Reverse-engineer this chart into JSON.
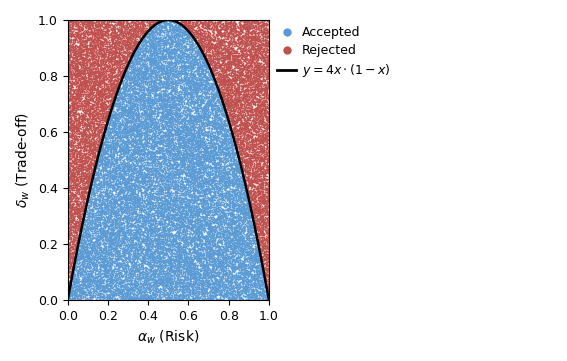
{
  "n_points": 50000,
  "seed": 42,
  "xlim": [
    0,
    1
  ],
  "ylim": [
    0,
    1
  ],
  "xlabel": "$\\alpha_w$ (Risk)",
  "ylabel": "$\\delta_w$ (Trade-off)",
  "accepted_color": "#5B9BD5",
  "rejected_color": "#C0504D",
  "curve_color": "#000000",
  "curve_linewidth": 1.8,
  "marker_size": 1.5,
  "legend_accepted": "Accepted",
  "legend_rejected": "Rejected",
  "legend_curve": "$y = 4x \\cdot (1-x)$",
  "xticks": [
    0.0,
    0.2,
    0.4,
    0.6,
    0.8,
    1.0
  ],
  "yticks": [
    0.0,
    0.2,
    0.4,
    0.6,
    0.8,
    1.0
  ],
  "figwidth": 5.67,
  "figheight": 3.61,
  "dpi": 100
}
